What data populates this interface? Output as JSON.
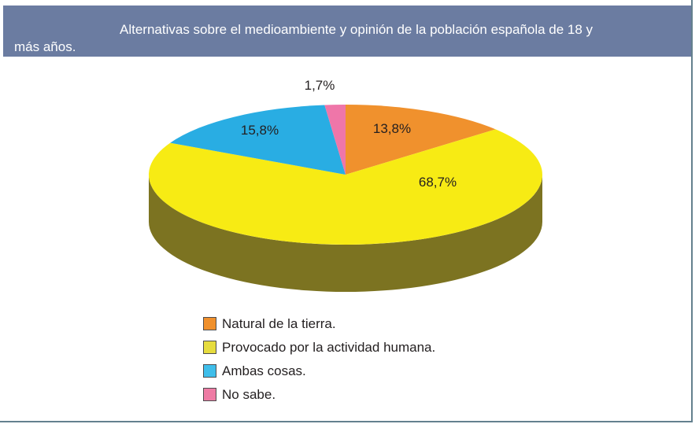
{
  "header": {
    "line1": "Alternativas sobre el medioambiente y opinión de la población española de 18 y",
    "line2": "más años."
  },
  "chart_data": {
    "type": "pie",
    "style": "3d",
    "title": "Alternativas sobre el medioambiente y opinión de la población española de 18 y más años.",
    "labels": [
      "Natural de la tierra.",
      "Provocado por la actividad humana.",
      "Ambas cosas.",
      "No sabe."
    ],
    "values": [
      13.8,
      68.7,
      15.8,
      1.7
    ],
    "value_labels": [
      "13,8%",
      "68,7%",
      "15,8%",
      "1,7%"
    ],
    "slice_colors": [
      "#F0912D",
      "#F7EB14",
      "#29ADE3",
      "#EF76A9"
    ],
    "side_color": "#7C7321",
    "legend_colors": [
      "#F0902C",
      "#E6DC3E",
      "#3FBEEA",
      "#EE7BA4"
    ],
    "legend_position": "bottom-left",
    "start_angle_deg": 90,
    "direction": "clockwise"
  },
  "colors": {
    "header_bg": "#6B7CA1",
    "header_text": "#FFFFFF",
    "frame_border": "#64808E",
    "label_text": "#231F20",
    "legend_swatch_border": "#4D4D4F",
    "background": "#FFFFFF"
  }
}
